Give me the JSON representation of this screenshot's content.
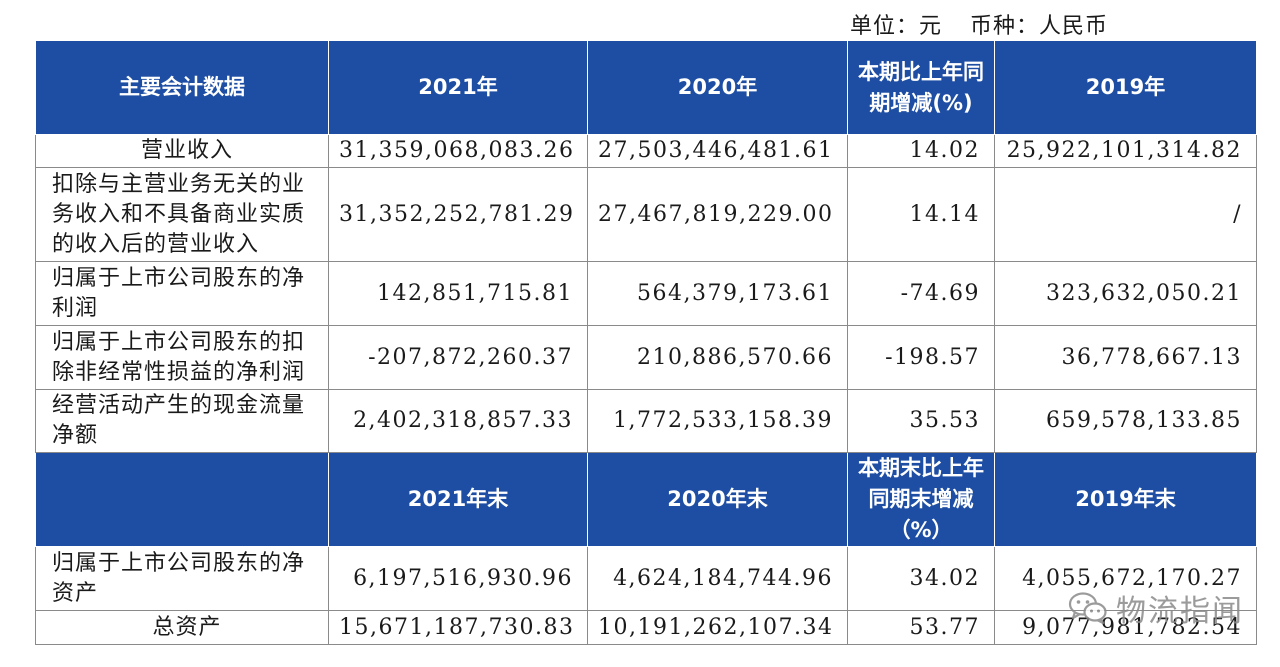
{
  "unit": {
    "unit_label": "单位：元",
    "currency_label": "币种：人民币"
  },
  "table": {
    "header1": [
      "主要会计数据",
      "2021年",
      "2020年",
      "本期比上年同期增减(%)",
      "2019年"
    ],
    "rows1": [
      {
        "label": "营业收入",
        "v2021": "31,359,068,083.26",
        "v2020": "27,503,446,481.61",
        "change": "14.02",
        "v2019": "25,922,101,314.82"
      },
      {
        "label": "扣除与主营业务无关的业务收入和不具备商业实质的收入后的营业收入",
        "v2021": "31,352,252,781.29",
        "v2020": "27,467,819,229.00",
        "change": "14.14",
        "v2019": "/"
      },
      {
        "label": "归属于上市公司股东的净利润",
        "v2021": "142,851,715.81",
        "v2020": "564,379,173.61",
        "change": "-74.69",
        "v2019": "323,632,050.21"
      },
      {
        "label": "归属于上市公司股东的扣除非经常性损益的净利润",
        "v2021": "-207,872,260.37",
        "v2020": "210,886,570.66",
        "change": "-198.57",
        "v2019": "36,778,667.13"
      },
      {
        "label": "经营活动产生的现金流量净额",
        "v2021": "2,402,318,857.33",
        "v2020": "1,772,533,158.39",
        "change": "35.53",
        "v2019": "659,578,133.85"
      }
    ],
    "header2": [
      "",
      "2021年末",
      "2020年末",
      "本期末比上年同期末增减（%）",
      "2019年末"
    ],
    "rows2": [
      {
        "label": "归属于上市公司股东的净资产",
        "v2021": "6,197,516,930.96",
        "v2020": "4,624,184,744.96",
        "change": "34.02",
        "v2019": "4,055,672,170.27"
      },
      {
        "label": "总资产",
        "v2021": "15,671,187,730.83",
        "v2020": "10,191,262,107.34",
        "change": "53.77",
        "v2019": "9,077,981,782.54"
      }
    ]
  },
  "watermark": {
    "icon": "wechat-icon",
    "text": "物流指闻"
  }
}
